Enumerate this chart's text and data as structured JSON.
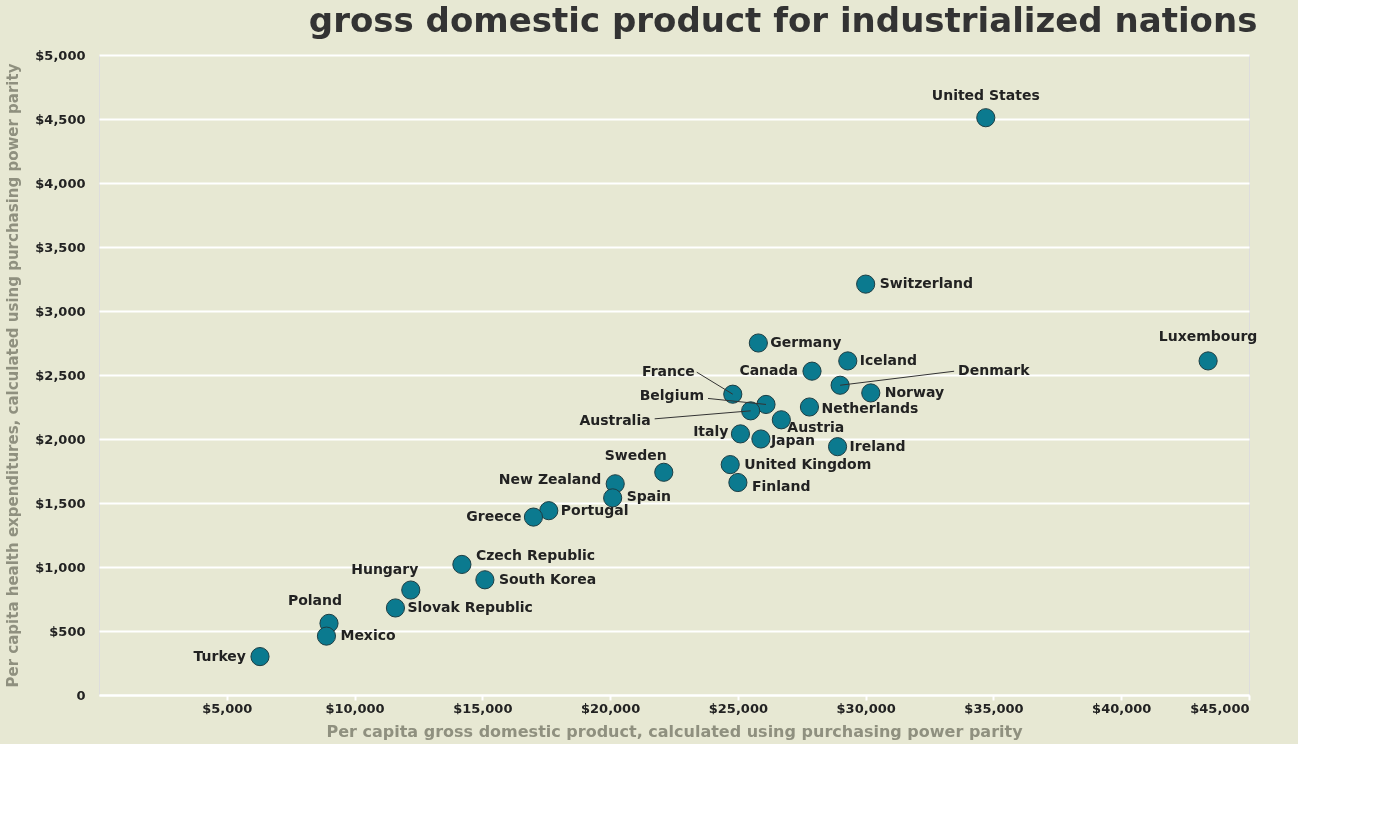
{
  "chart_data": {
    "type": "scatter",
    "title": "gross domestic product for industrialized nations",
    "xlabel": "Per capita gross domestic product, calculated using purchasing power parity",
    "ylabel": "Per capita health expenditures, calculated using purchasing power parity",
    "x": [
      34700,
      30000,
      43400,
      25800,
      29300,
      27900,
      29000,
      30200,
      24800,
      26100,
      25500,
      27800,
      26700,
      25100,
      25900,
      28900,
      24700,
      25000,
      22100,
      20200,
      20100,
      17600,
      17000,
      14200,
      15100,
      12200,
      11600,
      9000,
      8900,
      6300
    ],
    "series": [
      {
        "color": "#0b7a8f",
        "values": [
          4510,
          3210,
          2610,
          2750,
          2610,
          2530,
          2420,
          2360,
          2350,
          2270,
          2220,
          2250,
          2150,
          2040,
          2000,
          1940,
          1800,
          1660,
          1740,
          1650,
          1540,
          1440,
          1390,
          1020,
          900,
          820,
          680,
          560,
          460,
          300
        ]
      }
    ],
    "annotations": [
      {
        "text": "United States",
        "x": 34700,
        "y": 4510
      },
      {
        "text": "Switzerland",
        "x": 30000,
        "y": 3210
      },
      {
        "text": "Luxembourg",
        "x": 43400,
        "y": 2610
      },
      {
        "text": "Germany",
        "x": 25800,
        "y": 2750
      },
      {
        "text": "Iceland",
        "x": 29300,
        "y": 2610
      },
      {
        "text": "Canada",
        "x": 27900,
        "y": 2530
      },
      {
        "text": "Denmark",
        "x": 29000,
        "y": 2420
      },
      {
        "text": "Norway",
        "x": 30200,
        "y": 2360
      },
      {
        "text": "France",
        "x": 24800,
        "y": 2350
      },
      {
        "text": "Belgium",
        "x": 26100,
        "y": 2270
      },
      {
        "text": "Australia",
        "x": 25500,
        "y": 2220
      },
      {
        "text": "Netherlands",
        "x": 27800,
        "y": 2250
      },
      {
        "text": "Austria",
        "x": 26700,
        "y": 2150
      },
      {
        "text": "Italy",
        "x": 25100,
        "y": 2040
      },
      {
        "text": "Japan",
        "x": 25900,
        "y": 2000
      },
      {
        "text": "Ireland",
        "x": 28900,
        "y": 1940
      },
      {
        "text": "United Kingdom",
        "x": 24700,
        "y": 1800
      },
      {
        "text": "Finland",
        "x": 25000,
        "y": 1660
      },
      {
        "text": "Sweden",
        "x": 22100,
        "y": 1740
      },
      {
        "text": "New Zealand",
        "x": 20200,
        "y": 1650
      },
      {
        "text": "Spain",
        "x": 20100,
        "y": 1540
      },
      {
        "text": "Portugal",
        "x": 17600,
        "y": 1440
      },
      {
        "text": "Greece",
        "x": 17000,
        "y": 1390
      },
      {
        "text": "Czech Republic",
        "x": 14200,
        "y": 1020
      },
      {
        "text": "South Korea",
        "x": 15100,
        "y": 900
      },
      {
        "text": "Hungary",
        "x": 12200,
        "y": 820
      },
      {
        "text": "Slovak Republic",
        "x": 11600,
        "y": 680
      },
      {
        "text": "Poland",
        "x": 9000,
        "y": 560
      },
      {
        "text": "Mexico",
        "x": 8900,
        "y": 460
      },
      {
        "text": "Turkey",
        "x": 6300,
        "y": 300
      }
    ],
    "xlim": [
      0,
      45000
    ],
    "xticks": [
      {
        "value": 5000,
        "label": "$5,000"
      },
      {
        "value": 10000,
        "label": "$10,000"
      },
      {
        "value": 15000,
        "label": "$15,000"
      },
      {
        "value": 20000,
        "label": "$20,000"
      },
      {
        "value": 25000,
        "label": "$25,000"
      },
      {
        "value": 30000,
        "label": "$30,000"
      },
      {
        "value": 35000,
        "label": "$35,000"
      },
      {
        "value": 40000,
        "label": "$40,000"
      },
      {
        "value": 45000,
        "label": "$45,000"
      }
    ],
    "ylim": [
      0,
      5000
    ],
    "yticks": [
      0,
      {
        "value": 500,
        "label": "$500"
      },
      {
        "value": 1000,
        "label": "$1,000"
      },
      {
        "value": 1500,
        "label": "$1,500"
      },
      {
        "value": 2000,
        "label": "$2,000"
      },
      {
        "value": 2500,
        "label": "$2,500"
      },
      {
        "value": 3000,
        "label": "$3,000"
      },
      {
        "value": 3500,
        "label": "$3,500"
      },
      {
        "value": 4000,
        "label": "$4,000"
      },
      {
        "value": 4500,
        "label": "$4,500"
      },
      {
        "value": 5000,
        "label": "$5,000"
      }
    ],
    "grid": "y",
    "marker": "circle"
  }
}
